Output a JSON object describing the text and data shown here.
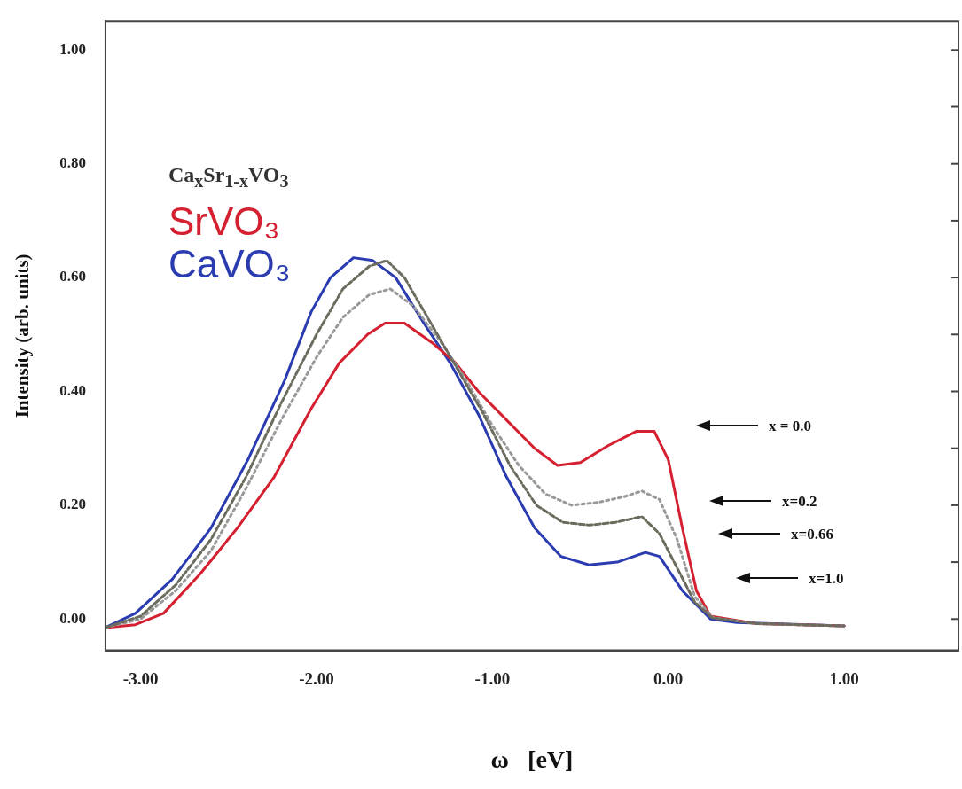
{
  "chart_data": {
    "type": "line",
    "xlabel": "ω   [eV]",
    "ylabel": "Intensity (arb. units)",
    "legend_title": "Ca$_{x}$Sr$_{1-x}$VO$_{3}$",
    "legend": "top left",
    "grid": false,
    "marker": "none",
    "xlim": [
      -3.2,
      1.65
    ],
    "ylim": [
      -0.055,
      1.05
    ],
    "xticks": [
      {
        "value": -3,
        "label": "-3.00"
      },
      {
        "value": -2,
        "label": "-2.00"
      },
      {
        "value": -1,
        "label": "-1.00"
      },
      {
        "value": 0,
        "label": "0.00"
      },
      {
        "value": 1,
        "label": "1.00"
      }
    ],
    "yticks": [
      {
        "value": 0,
        "label": "0.00"
      },
      {
        "value": 0.1,
        "label": null
      },
      {
        "value": 0.2,
        "label": "0.20"
      },
      {
        "value": 0.3,
        "label": null
      },
      {
        "value": 0.4,
        "label": "0.40"
      },
      {
        "value": 0.5,
        "label": null
      },
      {
        "value": 0.6,
        "label": "0.60"
      },
      {
        "value": 0.7,
        "label": null
      },
      {
        "value": 0.8,
        "label": "0.80"
      },
      {
        "value": 0.9,
        "label": null
      },
      {
        "value": 1,
        "label": "1.00"
      }
    ],
    "series": [
      {
        "name": "SrVO₃",
        "color": "#d42030",
        "line_style": "solid",
        "x": [
          -3.2,
          -3.03,
          -2.87,
          -2.66,
          -2.45,
          -2.24,
          -2.03,
          -1.87,
          -1.71,
          -1.61,
          -1.5,
          -1.34,
          -1.21,
          -1.08,
          -0.92,
          -0.76,
          -0.63,
          -0.5,
          -0.34,
          -0.18,
          -0.08,
          0,
          0.08,
          0.16,
          0.24,
          0.5,
          1
        ],
        "values": [
          -0.015,
          -0.01,
          0.01,
          0.08,
          0.16,
          0.25,
          0.37,
          0.45,
          0.5,
          0.52,
          0.52,
          0.485,
          0.45,
          0.4,
          0.35,
          0.3,
          0.27,
          0.275,
          0.305,
          0.33,
          0.33,
          0.28,
          0.16,
          0.05,
          0.005,
          -0.008,
          -0.012
        ]
      },
      {
        "color": "#999999",
        "line_style": "dotted",
        "x": [
          -3.2,
          -3,
          -2.8,
          -2.6,
          -2.4,
          -2.2,
          -2,
          -1.85,
          -1.7,
          -1.58,
          -1.45,
          -1.3,
          -1.15,
          -1,
          -0.85,
          -0.7,
          -0.55,
          -0.4,
          -0.25,
          -0.15,
          -0.05,
          0.05,
          0.15,
          0.25,
          0.5,
          1
        ],
        "values": [
          -0.015,
          0,
          0.05,
          0.12,
          0.23,
          0.35,
          0.46,
          0.53,
          0.57,
          0.58,
          0.55,
          0.49,
          0.42,
          0.34,
          0.27,
          0.22,
          0.2,
          0.205,
          0.215,
          0.225,
          0.21,
          0.14,
          0.04,
          0.003,
          -0.008,
          -0.012
        ]
      },
      {
        "color": "#6b6b5e",
        "line_style": "dashed",
        "x": [
          -3.2,
          -3,
          -2.8,
          -2.6,
          -2.4,
          -2.2,
          -2,
          -1.85,
          -1.7,
          -1.6,
          -1.5,
          -1.35,
          -1.2,
          -1.05,
          -0.9,
          -0.75,
          -0.6,
          -0.45,
          -0.3,
          -0.15,
          -0.05,
          0.05,
          0.15,
          0.25,
          0.5,
          1
        ],
        "values": [
          -0.015,
          0.005,
          0.06,
          0.14,
          0.25,
          0.38,
          0.5,
          0.58,
          0.62,
          0.63,
          0.6,
          0.52,
          0.44,
          0.36,
          0.27,
          0.2,
          0.17,
          0.165,
          0.17,
          0.18,
          0.15,
          0.09,
          0.03,
          0.002,
          -0.008,
          -0.012
        ]
      },
      {
        "name": "CaVO₃",
        "color": "#2a3cb0",
        "line_style": "solid",
        "x": [
          -3.2,
          -3.03,
          -2.82,
          -2.6,
          -2.39,
          -2.18,
          -2.03,
          -1.92,
          -1.79,
          -1.68,
          -1.55,
          -1.39,
          -1.24,
          -1.08,
          -0.92,
          -0.76,
          -0.61,
          -0.45,
          -0.29,
          -0.13,
          -0.05,
          0.08,
          0.24,
          0.39,
          1
        ],
        "values": [
          -0.015,
          0.01,
          0.07,
          0.16,
          0.28,
          0.42,
          0.54,
          0.6,
          0.635,
          0.63,
          0.6,
          0.52,
          0.45,
          0.36,
          0.25,
          0.16,
          0.11,
          0.095,
          0.1,
          0.117,
          0.11,
          0.05,
          0,
          -0.006,
          -0.012
        ]
      }
    ],
    "annotations": [
      "x = 0.0",
      "x=0.2",
      "x=0.66",
      "x=1.0"
    ]
  }
}
